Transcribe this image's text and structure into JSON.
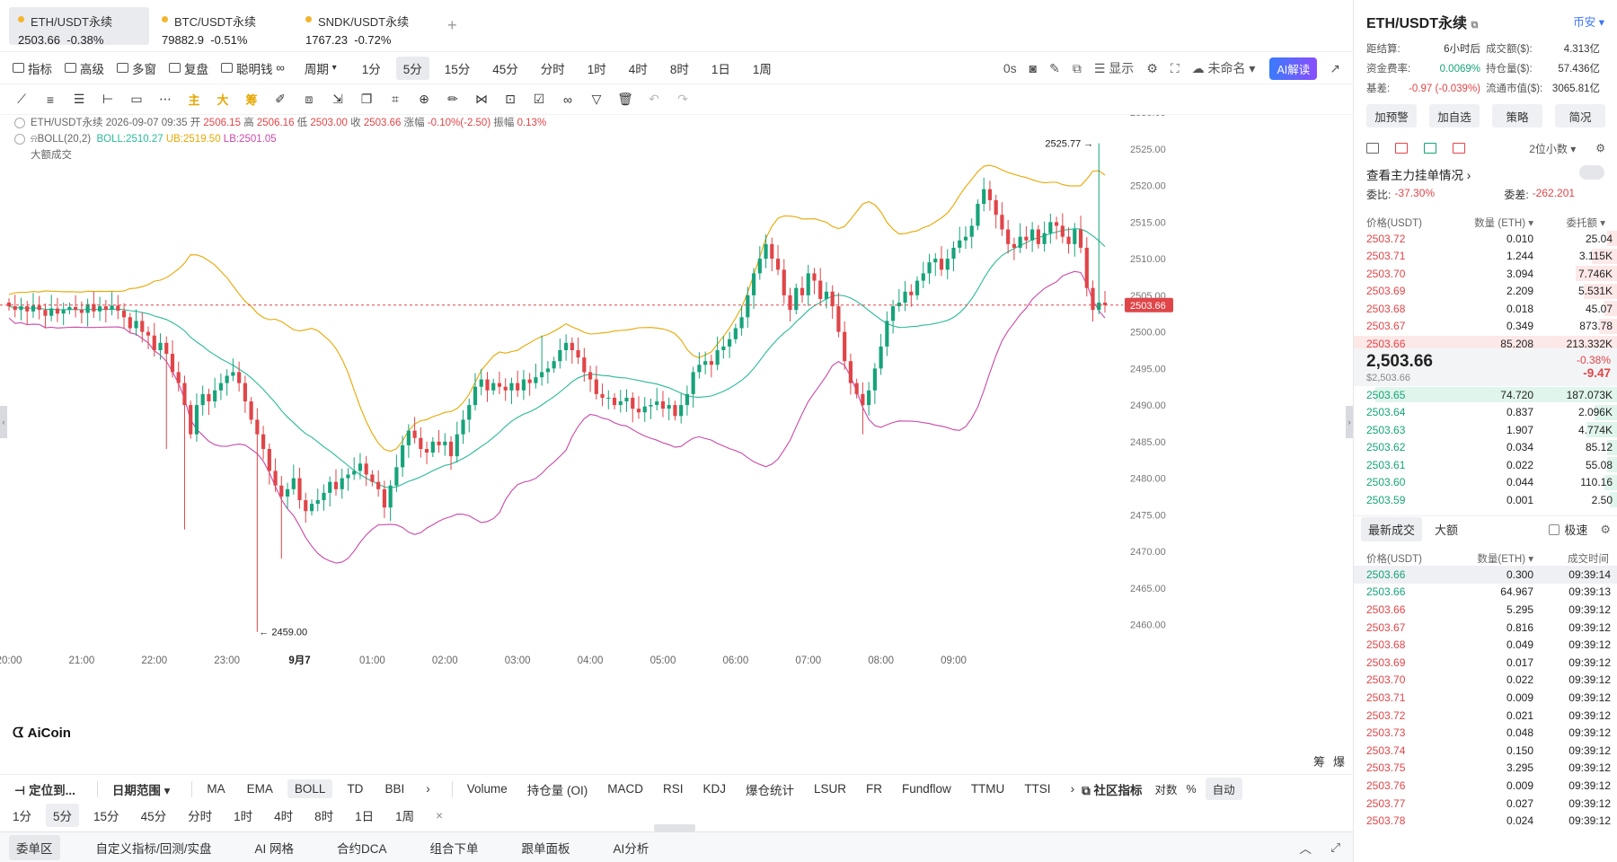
{
  "tabs": [
    {
      "name": "ETH/USDT永续",
      "price": "2503.66",
      "change": "-0.38%"
    },
    {
      "name": "BTC/USDT永续",
      "price": "79882.9",
      "change": "-0.51%"
    },
    {
      "name": "SNDK/USDT永续",
      "price": "1767.23",
      "change": "-0.72%"
    }
  ],
  "tab_add": "+",
  "toolbar": {
    "indicator": "指标",
    "advanced": "高级",
    "multi": "多窗",
    "replay": "复盘",
    "smart": "聪明钱",
    "period_select": "周期",
    "periods": [
      "1分",
      "5分",
      "15分",
      "45分",
      "分时",
      "1时",
      "4时",
      "8时",
      "1日",
      "1周"
    ],
    "active_period": "5分",
    "countdown": "0s",
    "display": "显示",
    "unnamed": "未命名",
    "ai": "AI解读"
  },
  "drawbar": {
    "main": "主",
    "big": "大",
    "chip": "筹"
  },
  "legend": {
    "symbol_line": "ETH/USDT永续 2026-09-07 09:35",
    "open_label": "开",
    "open": "2506.15",
    "high_label": "高",
    "high": "2506.16",
    "low_label": "低",
    "low": "2503.00",
    "close_label": "收",
    "close": "2503.66",
    "change_label": "涨幅",
    "change": "-0.10%(-2.50)",
    "amp_label": "振幅",
    "amp": "0.13%",
    "boll": "BOLL(20,2)",
    "boll_mid": "BOLL:2510.27",
    "boll_ub": "UB:2519.50",
    "boll_lb": "LB:2501.05",
    "big_trades": "大额成交"
  },
  "logo": "AiCoin",
  "chart_data": {
    "type": "candlestick",
    "y_axis_ticks": [
      "2530.00",
      "2525.00",
      "2520.00",
      "2515.00",
      "2510.00",
      "2505.00",
      "2500.00",
      "2495.00",
      "2490.00",
      "2485.00",
      "2480.00",
      "2475.00",
      "2470.00",
      "2465.00",
      "2460.00"
    ],
    "ylim": [
      2457,
      2531
    ],
    "x_axis_ticks": [
      "20:00",
      "21:00",
      "22:00",
      "23:00",
      "9月7",
      "01:00",
      "02:00",
      "03:00",
      "04:00",
      "05:00",
      "06:00",
      "07:00",
      "08:00",
      "09:00"
    ],
    "x_tick_marks": [
      0,
      12,
      24,
      36,
      48,
      60,
      72,
      84,
      96,
      108,
      120,
      132,
      144,
      156
    ],
    "current_price": "2503.66",
    "max_label": "2525.77",
    "min_label": "2459.00",
    "closes": [
      2503.5,
      2503.0,
      2503.5,
      2502.8,
      2503.6,
      2503.0,
      2502.2,
      2503.2,
      2502.5,
      2503.0,
      2503.4,
      2503.0,
      2502.6,
      2503.8,
      2502.8,
      2503.5,
      2503.0,
      2503.6,
      2502.9,
      2502.0,
      2500.5,
      2501.5,
      2500.0,
      2499.5,
      2497.5,
      2498.5,
      2497.0,
      2494.5,
      2493.0,
      2490.0,
      2486.0,
      2490.0,
      2491.5,
      2490.5,
      2492.0,
      2493.0,
      2494.0,
      2494.5,
      2493.0,
      2490.5,
      2488.0,
      2486.0,
      2484.0,
      2481.0,
      2479.0,
      2477.5,
      2478.5,
      2480.0,
      2477.0,
      2475.5,
      2476.5,
      2477.0,
      2478.0,
      2479.5,
      2478.5,
      2480.0,
      2480.5,
      2481.0,
      2482.0,
      2480.5,
      2479.5,
      2478.5,
      2476.0,
      2479.0,
      2481.5,
      2484.5,
      2486.5,
      2485.5,
      2484.0,
      2483.5,
      2485.0,
      2484.5,
      2485.0,
      2483.0,
      2486.0,
      2488.0,
      2490.0,
      2492.5,
      2493.5,
      2492.0,
      2493.0,
      2492.5,
      2492.0,
      2493.0,
      2492.0,
      2493.5,
      2493.0,
      2493.8,
      2494.5,
      2495.0,
      2496.0,
      2497.5,
      2498.5,
      2497.5,
      2496.5,
      2494.5,
      2493.5,
      2491.5,
      2491.0,
      2491.0,
      2490.0,
      2490.5,
      2491.0,
      2489.5,
      2489.0,
      2489.8,
      2490.0,
      2490.5,
      2489.5,
      2490.0,
      2488.5,
      2490.0,
      2491.5,
      2494.5,
      2495.5,
      2496.0,
      2495.5,
      2497.5,
      2498.0,
      2499.0,
      2500.5,
      2502.0,
      2505.0,
      2508.0,
      2510.0,
      2512.0,
      2510.0,
      2508.5,
      2505.0,
      2503.0,
      2506.0,
      2505.0,
      2508.0,
      2507.0,
      2504.5,
      2505.5,
      2503.5,
      2500.0,
      2496.0,
      2493.0,
      2491.5,
      2490.0,
      2492.0,
      2495.0,
      2498.0,
      2501.5,
      2503.5,
      2504.0,
      2505.5,
      2505.0,
      2507.0,
      2508.0,
      2509.5,
      2510.0,
      2508.5,
      2510.0,
      2511.5,
      2512.5,
      2513.0,
      2514.5,
      2517.5,
      2519.5,
      2518.0,
      2516.0,
      2514.0,
      2512.0,
      2511.5,
      2513.0,
      2512.5,
      2514.0,
      2512.0,
      2513.5,
      2515.0,
      2514.5,
      2513.0,
      2512.0,
      2514.0,
      2511.5,
      2506.0,
      2503.0,
      2504.0,
      2503.66
    ]
  },
  "bottom": {
    "locate": "定位到...",
    "date_range": "日期范围",
    "indicators_main": [
      "MA",
      "EMA",
      "BOLL",
      "TD",
      "BBI"
    ],
    "active_main": "BOLL",
    "indicators_sub": [
      "Volume",
      "持仓量 (OI)",
      "MACD",
      "RSI",
      "KDJ",
      "爆仓统计",
      "LSUR",
      "FR",
      "Fundflow",
      "TTMU",
      "TTSI"
    ],
    "community": "社区指标",
    "log": "对数",
    "pct": "%",
    "auto": "自动",
    "corner_a": "筹",
    "corner_b": "爆",
    "periods": [
      "1分",
      "5分",
      "15分",
      "45分",
      "分时",
      "1时",
      "4时",
      "8时",
      "1日",
      "1周"
    ],
    "active_period": "5分",
    "close": "×",
    "tabs": [
      "委单区",
      "自定义指标/回测/实盘",
      "AI 网格",
      "合约DCA",
      "组合下单",
      "跟单面板",
      "AI分析"
    ],
    "active_tab": "委单区"
  },
  "right": {
    "title": "ETH/USDT永续",
    "link": "币安",
    "stats": [
      {
        "k": "距结算:",
        "v": "6小时后",
        "color": "#333"
      },
      {
        "k": "成交额($):",
        "v": "4.313亿",
        "color": "#333"
      },
      {
        "k": "资金费率:",
        "v": "0.0069%",
        "color": "#16a37a"
      },
      {
        "k": "持仓量($):",
        "v": "57.436亿",
        "color": "#333"
      },
      {
        "k": "基差:",
        "v": "-0.97 (-0.039%)",
        "color": "#e04548"
      },
      {
        "k": "流通市值($):",
        "v": "3065.81亿",
        "color": "#333"
      }
    ],
    "buttons": [
      "加预警",
      "加自选",
      "策略",
      "简况"
    ],
    "decimals": "2位小数",
    "watch": "查看主力挂单情况",
    "ratio_label": "委比:",
    "ratio": "-37.30%",
    "diff_label": "委差:",
    "diff": "-262.201",
    "ob_headers": [
      "价格(USDT)",
      "数量 (ETH)",
      "委托额"
    ],
    "asks": [
      {
        "p": "2503.72",
        "q": "0.010",
        "t": "25.04",
        "w": 4
      },
      {
        "p": "2503.71",
        "q": "1.244",
        "t": "3.115K",
        "w": 10
      },
      {
        "p": "2503.70",
        "q": "3.094",
        "t": "7.746K",
        "w": 16
      },
      {
        "p": "2503.69",
        "q": "2.209",
        "t": "5.531K",
        "w": 13
      },
      {
        "p": "2503.68",
        "q": "0.018",
        "t": "45.07",
        "w": 5
      },
      {
        "p": "2503.67",
        "q": "0.349",
        "t": "873.78",
        "w": 7
      },
      {
        "p": "2503.66",
        "q": "85.208",
        "t": "213.332K",
        "w": 100
      }
    ],
    "mid_price": "2,503.66",
    "mid_sub": "$2,503.66",
    "mid_pct": "-0.38%",
    "mid_chg": "-9.47",
    "bids": [
      {
        "p": "2503.65",
        "q": "74.720",
        "t": "187.073K",
        "w": 92
      },
      {
        "p": "2503.64",
        "q": "0.837",
        "t": "2.096K",
        "w": 9
      },
      {
        "p": "2503.63",
        "q": "1.907",
        "t": "4.774K",
        "w": 12
      },
      {
        "p": "2503.62",
        "q": "0.034",
        "t": "85.12",
        "w": 4
      },
      {
        "p": "2503.61",
        "q": "0.022",
        "t": "55.08",
        "w": 4
      },
      {
        "p": "2503.60",
        "q": "0.044",
        "t": "110.16",
        "w": 5
      },
      {
        "p": "2503.59",
        "q": "0.001",
        "t": "2.50",
        "w": 3
      }
    ],
    "trade_tabs": [
      "最新成交",
      "大额"
    ],
    "fast": "极速",
    "trade_headers": [
      "价格(USDT)",
      "数量(ETH)",
      "成交时间"
    ],
    "trades": [
      {
        "p": "2503.66",
        "q": "0.300",
        "t": "09:39:14",
        "c": "g"
      },
      {
        "p": "2503.66",
        "q": "64.967",
        "t": "09:39:13",
        "c": "g"
      },
      {
        "p": "2503.66",
        "q": "5.295",
        "t": "09:39:12",
        "c": "r"
      },
      {
        "p": "2503.67",
        "q": "0.816",
        "t": "09:39:12",
        "c": "r"
      },
      {
        "p": "2503.68",
        "q": "0.049",
        "t": "09:39:12",
        "c": "r"
      },
      {
        "p": "2503.69",
        "q": "0.017",
        "t": "09:39:12",
        "c": "r"
      },
      {
        "p": "2503.70",
        "q": "0.022",
        "t": "09:39:12",
        "c": "r"
      },
      {
        "p": "2503.71",
        "q": "0.009",
        "t": "09:39:12",
        "c": "r"
      },
      {
        "p": "2503.72",
        "q": "0.021",
        "t": "09:39:12",
        "c": "r"
      },
      {
        "p": "2503.73",
        "q": "0.048",
        "t": "09:39:12",
        "c": "r"
      },
      {
        "p": "2503.74",
        "q": "0.150",
        "t": "09:39:12",
        "c": "r"
      },
      {
        "p": "2503.75",
        "q": "3.295",
        "t": "09:39:12",
        "c": "r"
      },
      {
        "p": "2503.76",
        "q": "0.009",
        "t": "09:39:12",
        "c": "r"
      },
      {
        "p": "2503.77",
        "q": "0.027",
        "t": "09:39:12",
        "c": "r"
      },
      {
        "p": "2503.78",
        "q": "0.024",
        "t": "09:39:12",
        "c": "r"
      }
    ],
    "colors": {
      "up": "#16a37a",
      "down": "#e04548"
    }
  }
}
